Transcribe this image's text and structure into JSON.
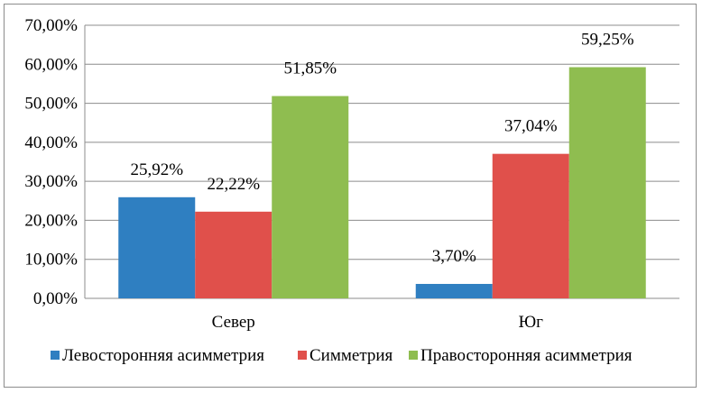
{
  "chart_data": {
    "type": "bar",
    "categories": [
      "Север",
      "Юг"
    ],
    "series": [
      {
        "name": "Левосторонняя асимметрия",
        "values": [
          25.92,
          3.7
        ],
        "labels": [
          "25,92%",
          "3,70%"
        ],
        "color": "#2f7fc1"
      },
      {
        "name": "Симметрия",
        "values": [
          22.22,
          37.04
        ],
        "labels": [
          "22,22%",
          "37,04%"
        ],
        "color": "#e0504b"
      },
      {
        "name": "Правосторонняя асимметрия",
        "values": [
          51.85,
          59.25
        ],
        "labels": [
          "51,85%",
          "59,25%"
        ],
        "color": "#8fbd50"
      }
    ],
    "yticks": [
      "0,00%",
      "10,00%",
      "20,00%",
      "30,00%",
      "40,00%",
      "50,00%",
      "60,00%",
      "70,00%"
    ],
    "ylim": [
      0,
      70
    ],
    "grid": true,
    "legend_position": "bottom"
  }
}
